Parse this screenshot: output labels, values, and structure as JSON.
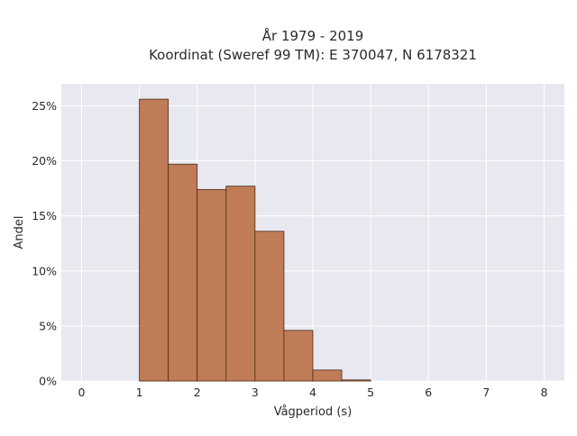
{
  "chart_data": {
    "type": "bar",
    "title": "År 1979 - 2019",
    "subtitle": "Koordinat (Sweref 99 TM): E 370047, N 6178321",
    "xlabel": "Vågperiod (s)",
    "ylabel": "Andel",
    "xlim": [
      -0.35,
      8.35
    ],
    "ylim": [
      0,
      27
    ],
    "x_ticks": [
      0,
      1,
      2,
      3,
      4,
      5,
      6,
      7,
      8
    ],
    "y_ticks": [
      0,
      5,
      10,
      15,
      20,
      25
    ],
    "y_tick_format": "percent",
    "bin_width": 0.5,
    "bins": [
      {
        "x0": 1.0,
        "x1": 1.5,
        "value": 25.6
      },
      {
        "x0": 1.5,
        "x1": 2.0,
        "value": 19.7
      },
      {
        "x0": 2.0,
        "x1": 2.5,
        "value": 17.4
      },
      {
        "x0": 2.5,
        "x1": 3.0,
        "value": 17.7
      },
      {
        "x0": 3.0,
        "x1": 3.5,
        "value": 13.6
      },
      {
        "x0": 3.5,
        "x1": 4.0,
        "value": 4.6
      },
      {
        "x0": 4.0,
        "x1": 4.5,
        "value": 1.0
      },
      {
        "x0": 4.5,
        "x1": 5.0,
        "value": 0.1
      }
    ],
    "grid": true,
    "colors": {
      "bar_fill": "#bf7c56",
      "bar_edge": "#4a2a18",
      "plot_background": "#e8e8f0",
      "grid": "#ffffff"
    }
  }
}
